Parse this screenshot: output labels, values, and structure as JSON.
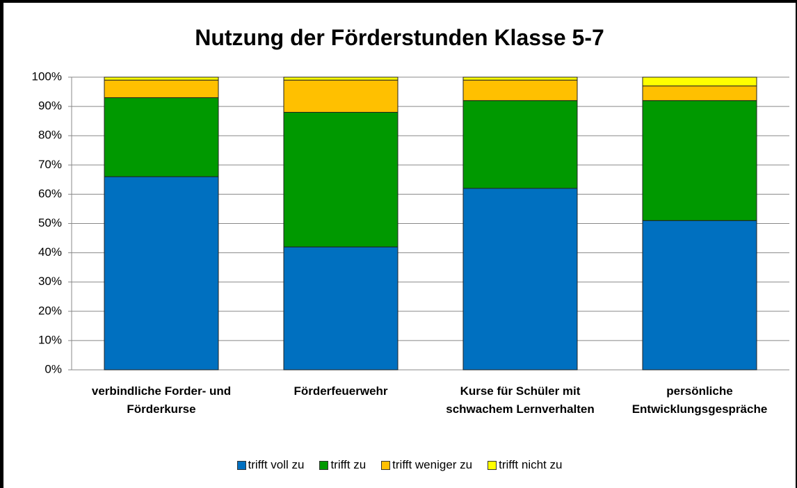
{
  "chart_data": {
    "type": "stacked_bar",
    "title": "Nutzung der Förderstunden Klasse 5-7",
    "categories": [
      "verbindliche Forder- und Förderkurse",
      "Förderfeuerwehr",
      "Kurse für Schüler mit schwachem Lernverhalten",
      "persönliche Entwicklungsgespräche"
    ],
    "series": [
      {
        "name": "trifft voll zu",
        "color": "#0070c0",
        "values": [
          66,
          42,
          62,
          51
        ]
      },
      {
        "name": "trifft zu",
        "color": "#009900",
        "values": [
          27,
          46,
          30,
          41
        ]
      },
      {
        "name": "trifft weniger zu",
        "color": "#ffc000",
        "values": [
          6,
          11,
          7,
          5
        ]
      },
      {
        "name": "trifft nicht zu",
        "color": "#ffff00",
        "values": [
          1,
          1,
          1,
          3
        ]
      }
    ],
    "ylim": [
      0,
      100
    ],
    "yticks": [
      {
        "value": 0,
        "label": "0%"
      },
      {
        "value": 10,
        "label": "10%"
      },
      {
        "value": 20,
        "label": "20%"
      },
      {
        "value": 30,
        "label": "30%"
      },
      {
        "value": 40,
        "label": "40%"
      },
      {
        "value": 50,
        "label": "50%"
      },
      {
        "value": 60,
        "label": "60%"
      },
      {
        "value": 70,
        "label": "70%"
      },
      {
        "value": 80,
        "label": "80%"
      },
      {
        "value": 90,
        "label": "90%"
      },
      {
        "value": 100,
        "label": "100%"
      }
    ],
    "grid": true,
    "legend": "bottom"
  }
}
